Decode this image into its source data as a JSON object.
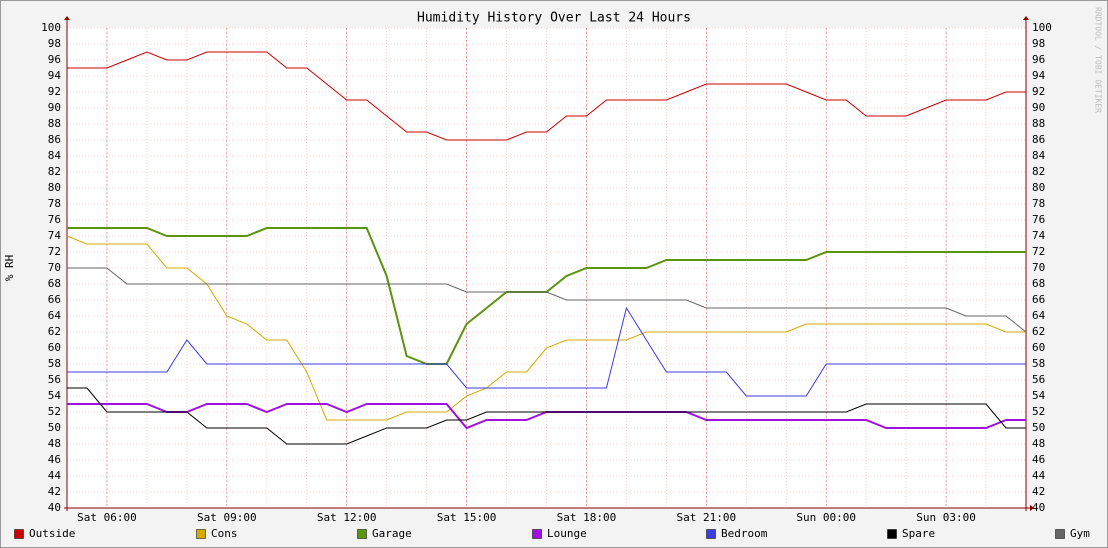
{
  "chart_data": {
    "type": "line",
    "title": "Humidity History Over Last 24 Hours",
    "y_label": "% RH",
    "side_note": "RRDTOOL / TOBI OETIKER",
    "x": [
      "Sat 05:00",
      "Sat 05:30",
      "Sat 06:00",
      "Sat 06:30",
      "Sat 07:00",
      "Sat 07:30",
      "Sat 08:00",
      "Sat 08:30",
      "Sat 09:00",
      "Sat 09:30",
      "Sat 10:00",
      "Sat 10:30",
      "Sat 11:00",
      "Sat 11:30",
      "Sat 12:00",
      "Sat 12:30",
      "Sat 13:00",
      "Sat 13:30",
      "Sat 14:00",
      "Sat 14:30",
      "Sat 15:00",
      "Sat 15:30",
      "Sat 16:00",
      "Sat 16:30",
      "Sat 17:00",
      "Sat 17:30",
      "Sat 18:00",
      "Sat 18:30",
      "Sat 19:00",
      "Sat 19:30",
      "Sat 20:00",
      "Sat 20:30",
      "Sat 21:00",
      "Sat 21:30",
      "Sat 22:00",
      "Sat 22:30",
      "Sat 23:00",
      "Sat 23:30",
      "Sun 00:00",
      "Sun 00:30",
      "Sun 01:00",
      "Sun 01:30",
      "Sun 02:00",
      "Sun 02:30",
      "Sun 03:00",
      "Sun 03:30",
      "Sun 04:00",
      "Sun 04:30",
      "Sun 05:00"
    ],
    "xlim": [
      "Sat 05:00",
      "Sun 05:00"
    ],
    "xticks": [
      "Sat 06:00",
      "Sat 09:00",
      "Sat 12:00",
      "Sat 15:00",
      "Sat 18:00",
      "Sat 21:00",
      "Sun 00:00",
      "Sun 03:00"
    ],
    "ylim": [
      40,
      100
    ],
    "yticks": [
      40,
      42,
      44,
      46,
      48,
      50,
      52,
      54,
      56,
      58,
      60,
      62,
      64,
      66,
      68,
      70,
      72,
      74,
      76,
      78,
      80,
      82,
      84,
      86,
      88,
      90,
      92,
      94,
      96,
      98,
      100
    ],
    "grid": true,
    "series": [
      {
        "name": "Outside",
        "color": "#cc0000",
        "values": [
          95,
          95,
          95,
          96,
          97,
          96,
          96,
          97,
          97,
          97,
          97,
          95,
          95,
          93,
          91,
          91,
          89,
          87,
          87,
          86,
          86,
          86,
          86,
          87,
          87,
          89,
          89,
          91,
          91,
          91,
          91,
          92,
          93,
          93,
          93,
          93,
          93,
          92,
          91,
          91,
          89,
          89,
          89,
          90,
          91,
          91,
          91,
          92,
          92
        ]
      },
      {
        "name": "Cons",
        "color": "#d4aa00",
        "values": [
          74,
          73,
          73,
          73,
          73,
          70,
          70,
          68,
          64,
          63,
          61,
          61,
          57,
          51,
          51,
          51,
          51,
          52,
          52,
          52,
          54,
          55,
          57,
          57,
          60,
          61,
          61,
          61,
          61,
          62,
          62,
          62,
          62,
          62,
          62,
          62,
          62,
          63,
          63,
          63,
          63,
          63,
          63,
          63,
          63,
          63,
          63,
          62,
          62
        ]
      },
      {
        "name": "Garage",
        "color": "#5a9410",
        "values": [
          75,
          75,
          75,
          75,
          75,
          74,
          74,
          74,
          74,
          74,
          75,
          75,
          75,
          75,
          75,
          75,
          69,
          59,
          58,
          58,
          63,
          65,
          67,
          67,
          67,
          69,
          70,
          70,
          70,
          70,
          71,
          71,
          71,
          71,
          71,
          71,
          71,
          71,
          72,
          72,
          72,
          72,
          72,
          72,
          72,
          72,
          72,
          72,
          72
        ]
      },
      {
        "name": "Lounge",
        "color": "#a010e0",
        "values": [
          53,
          53,
          53,
          53,
          53,
          52,
          52,
          53,
          53,
          53,
          52,
          53,
          53,
          53,
          52,
          53,
          53,
          53,
          53,
          53,
          50,
          51,
          51,
          51,
          52,
          52,
          52,
          52,
          52,
          52,
          52,
          52,
          51,
          51,
          51,
          51,
          51,
          51,
          51,
          51,
          51,
          50,
          50,
          50,
          50,
          50,
          50,
          51,
          51
        ]
      },
      {
        "name": "Bedroom",
        "color": "#3c3ce0",
        "values": [
          57,
          57,
          57,
          57,
          57,
          57,
          61,
          58,
          58,
          58,
          58,
          58,
          58,
          58,
          58,
          58,
          58,
          58,
          58,
          58,
          55,
          55,
          55,
          55,
          55,
          55,
          55,
          55,
          65,
          61,
          57,
          57,
          57,
          57,
          54,
          54,
          54,
          54,
          58,
          58,
          58,
          58,
          58,
          58,
          58,
          58,
          58,
          58,
          58
        ]
      },
      {
        "name": "Spare",
        "color": "#000000",
        "values": [
          55,
          55,
          52,
          52,
          52,
          52,
          52,
          50,
          50,
          50,
          50,
          48,
          48,
          48,
          48,
          49,
          50,
          50,
          50,
          51,
          51,
          52,
          52,
          52,
          52,
          52,
          52,
          52,
          52,
          52,
          52,
          52,
          52,
          52,
          52,
          52,
          52,
          52,
          52,
          52,
          53,
          53,
          53,
          53,
          53,
          53,
          53,
          50,
          50
        ]
      },
      {
        "name": "Gym",
        "color": "#666666",
        "values": [
          70,
          70,
          70,
          68,
          68,
          68,
          68,
          68,
          68,
          68,
          68,
          68,
          68,
          68,
          68,
          68,
          68,
          68,
          68,
          68,
          67,
          67,
          67,
          67,
          67,
          66,
          66,
          66,
          66,
          66,
          66,
          66,
          65,
          65,
          65,
          65,
          65,
          65,
          65,
          65,
          65,
          65,
          65,
          65,
          65,
          64,
          64,
          64,
          62
        ]
      }
    ]
  }
}
